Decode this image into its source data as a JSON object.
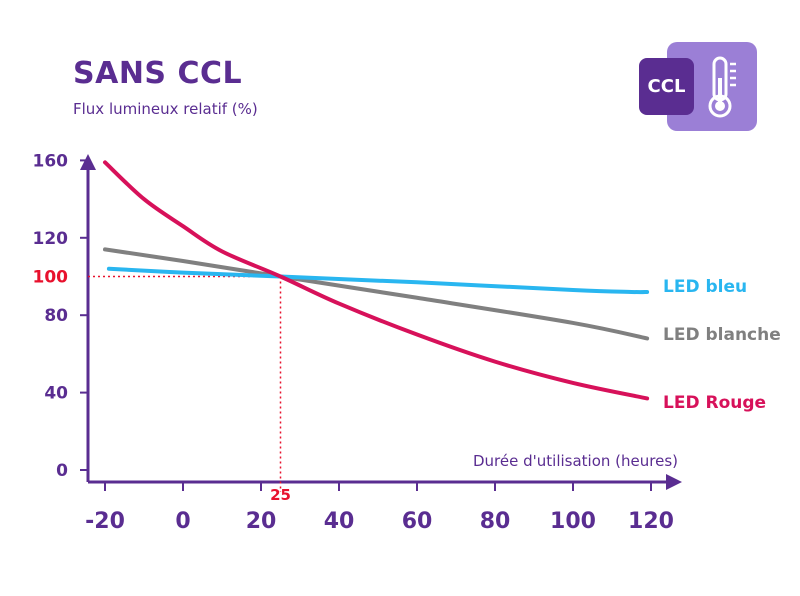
{
  "title": "SANS CCL",
  "badge": {
    "text": "CCL",
    "icon": "thermometer-icon"
  },
  "chart_data": {
    "type": "line",
    "title": "SANS CCL",
    "ylabel": "Flux lumineux relatif (%)",
    "xlabel": "Durée d'utilisation (heures)",
    "xlim": [
      -25,
      125
    ],
    "ylim": [
      0,
      165
    ],
    "x_ticks": [
      -20,
      0,
      20,
      40,
      60,
      80,
      100,
      120
    ],
    "y_ticks": [
      0,
      40,
      80,
      120,
      160
    ],
    "reference": {
      "x": 25,
      "y": 100,
      "x_label": "25",
      "y_label": "100",
      "color": "#e8112d"
    },
    "series": [
      {
        "name": "LED bleu",
        "color": "#29b6f0",
        "x": [
          -19,
          0,
          25,
          60,
          100,
          115,
          119
        ],
        "y": [
          104,
          102,
          100,
          97,
          93,
          92,
          92
        ]
      },
      {
        "name": "LED blanche",
        "color": "#808080",
        "x": [
          -20,
          0,
          25,
          60,
          100,
          119
        ],
        "y": [
          114,
          108,
          100,
          89,
          76,
          68
        ]
      },
      {
        "name": "LED Rouge",
        "color": "#d7115a",
        "x": [
          -20,
          -10,
          0,
          10,
          25,
          40,
          60,
          80,
          100,
          119
        ],
        "y": [
          159,
          140,
          126,
          113,
          100,
          86,
          70,
          56,
          45,
          37
        ]
      }
    ],
    "legend": "right, at line ends",
    "grid": false,
    "colors": {
      "axis": "#5a2d91",
      "text": "#5a2d91"
    }
  }
}
